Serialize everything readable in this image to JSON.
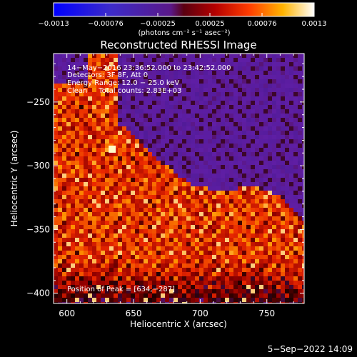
{
  "chart_data": {
    "type": "heatmap",
    "title": "Reconstructed RHESSI Image",
    "xlabel": "Heliocentric X (arcsec)",
    "ylabel": "Heliocentric Y (arcsec)",
    "xlim": [
      590,
      778
    ],
    "ylim": [
      -408,
      -212
    ],
    "x_ticks": [
      600,
      650,
      700,
      750
    ],
    "y_ticks": [
      -250,
      -300,
      -350,
      -400
    ],
    "x_tick_labels": [
      "600",
      "650",
      "700",
      "750"
    ],
    "y_tick_labels": [
      "−250",
      "−300",
      "−350",
      "−400"
    ],
    "colorbar": {
      "range": [
        -0.0013,
        0.0013
      ],
      "tick_labels": [
        "−0.0013",
        "−0.00076",
        "−0.00025",
        "0.00025",
        "0.00076",
        "0.0013"
      ],
      "unit_label": "(photons cm⁻² s⁻¹ asec⁻²)"
    },
    "annotations": [
      "14−May−2016 23:36:52.000 to 23:42:52.000",
      "Detectors: 3F 8F, Att 0",
      "Energy Range: 12.0 − 25.0 keV",
      "Clean     Total counts: 2.83E+03"
    ],
    "peak_label": "Position of Peak = [634,−287]",
    "peak_position": [
      634,
      -287
    ],
    "colormap": "RHESSI blue-purple-red-yellow-white",
    "grid": false
  },
  "footer_date": "5−Sep−2022 14:09"
}
